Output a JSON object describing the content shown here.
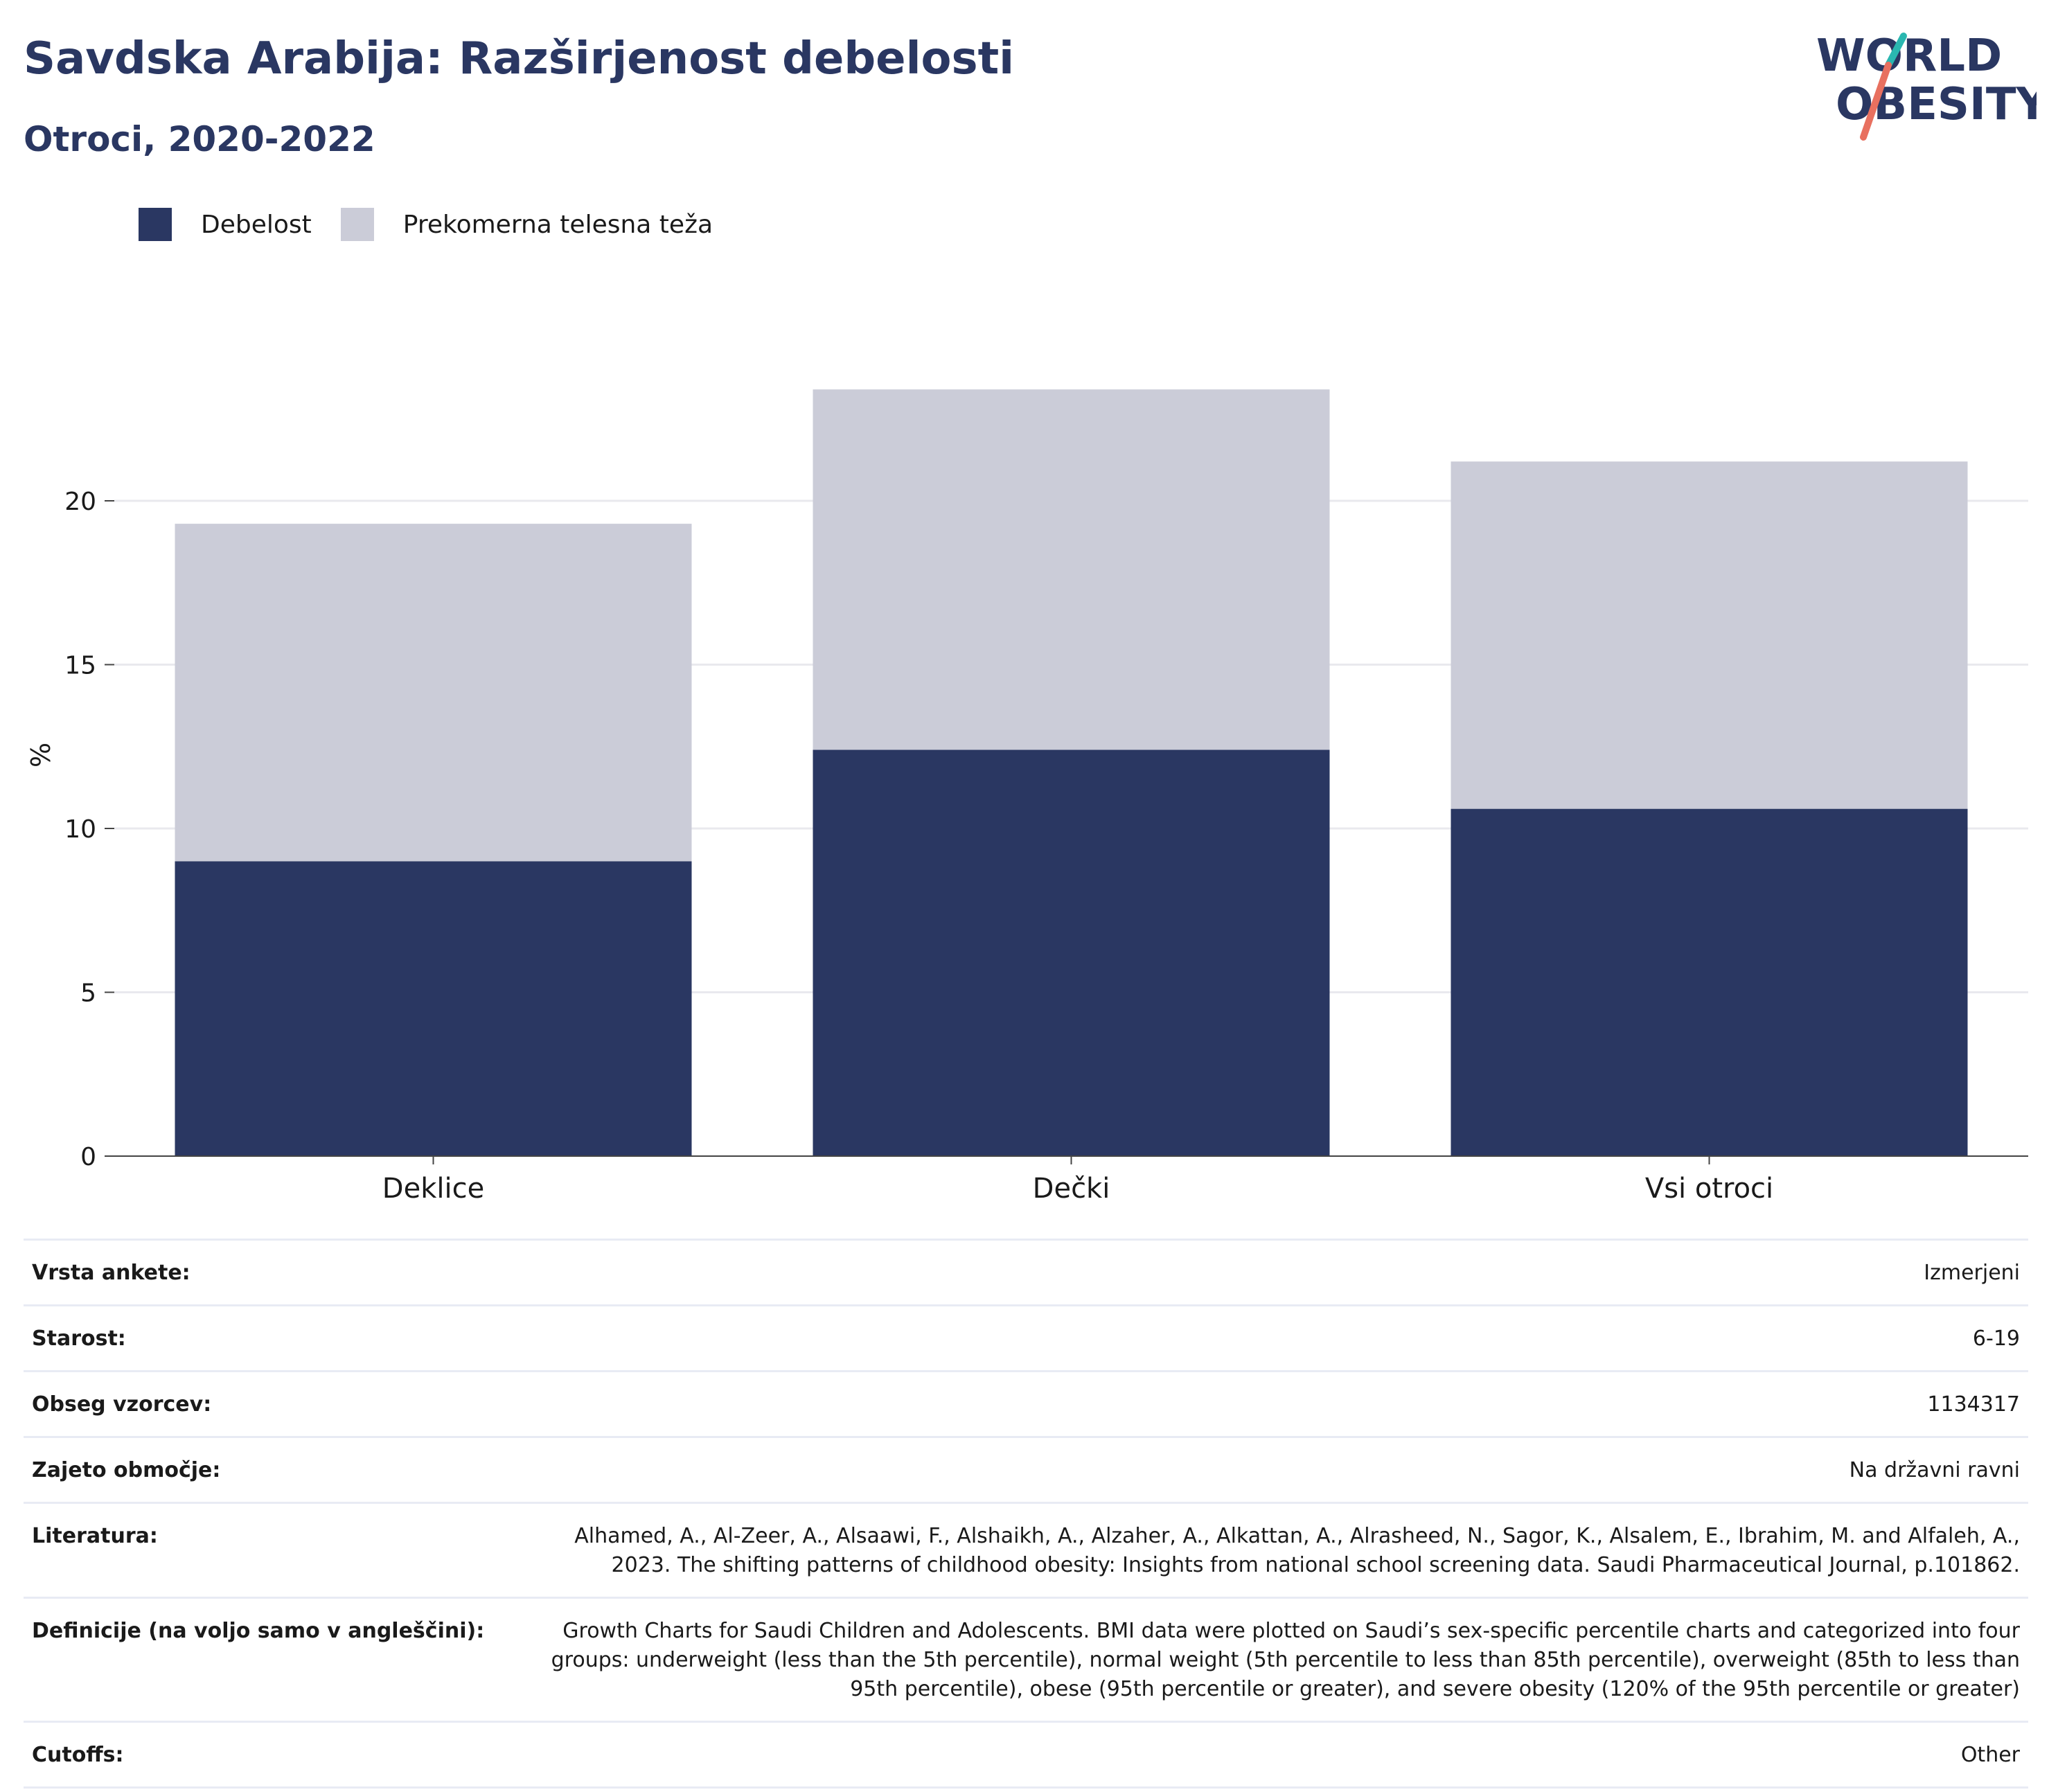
{
  "header": {
    "title": "Savdska Arabija: Razširjenost debelosti",
    "subtitle": "Otroci, 2020-2022"
  },
  "logo": {
    "line1": "WORLD",
    "line2": "OBESITY",
    "accent_teal": "#2ab7b0",
    "accent_coral": "#e8705f"
  },
  "colors": {
    "obesity": "#2a3762",
    "overweight": "#cbccd8",
    "text": "#2a3762"
  },
  "chart_data": {
    "type": "bar",
    "stacked": true,
    "categories": [
      "Deklice",
      "Dečki",
      "Vsi otroci"
    ],
    "series": [
      {
        "name": "Debelost",
        "values": [
          9.0,
          12.4,
          10.6
        ]
      },
      {
        "name": "Prekomerna telesna teža",
        "values": [
          10.3,
          11.0,
          10.6
        ]
      }
    ],
    "ylabel": "%",
    "xlabel": "",
    "ylim": [
      0,
      25
    ],
    "yticks": [
      0,
      5,
      10,
      15,
      20
    ],
    "grid": true,
    "legend": "top-left"
  },
  "meta": [
    {
      "label": "Vrsta ankete:",
      "value": "Izmerjeni"
    },
    {
      "label": "Starost:",
      "value": "6-19"
    },
    {
      "label": "Obseg vzorcev:",
      "value": "1134317"
    },
    {
      "label": "Zajeto območje:",
      "value": "Na državni ravni"
    },
    {
      "label": "Literatura:",
      "value": "Alhamed, A., Al-Zeer, A., Alsaawi, F., Alshaikh, A., Alzaher, A., Alkattan, A., Alrasheed, N., Sagor, K., Alsalem, E., Ibrahim, M. and Alfaleh, A., 2023. The shifting patterns of childhood obesity: Insights from national school screening data. Saudi Pharmaceutical Journal, p.101862."
    },
    {
      "label": "Definicije (na voljo samo v angleščini):",
      "value": "Growth Charts for Saudi Children and Adolescents. BMI data were plotted on Saudi’s sex-specific percentile charts and categorized into four groups: underweight (less than the 5th percentile), normal weight (5th percentile to less than 85th percentile), overweight (85th to less than 95th percentile), obese (95th percentile or greater), and severe obesity (120% of the 95th percentile or greater)"
    },
    {
      "label": "Cutoffs:",
      "value": "Other"
    }
  ]
}
